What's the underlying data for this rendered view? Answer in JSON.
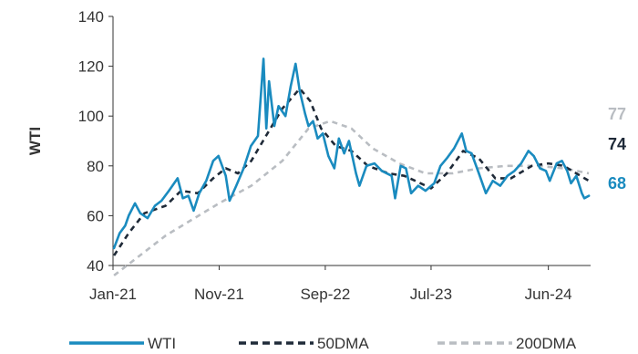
{
  "chart_data": {
    "type": "line",
    "ylabel": "WTI",
    "ylim": [
      40,
      140
    ],
    "yticks": [
      40,
      60,
      80,
      100,
      120,
      140
    ],
    "xlim": [
      "2021-01-01",
      "2024-09-30"
    ],
    "xticks": [
      {
        "date": "2021-01-01",
        "label": "Jan-21"
      },
      {
        "date": "2021-11-01",
        "label": "Nov-21"
      },
      {
        "date": "2022-09-01",
        "label": "Sep-22"
      },
      {
        "date": "2023-07-01",
        "label": "Jul-23"
      },
      {
        "date": "2024-06-01",
        "label": "Jun-24"
      }
    ],
    "grid": false,
    "legend_position": "bottom",
    "series": [
      {
        "name": "WTI",
        "color": "#1a8bbf",
        "style": "solid",
        "end_label": "68",
        "points": [
          [
            "2021-01-04",
            47
          ],
          [
            "2021-01-20",
            53
          ],
          [
            "2021-02-05",
            56
          ],
          [
            "2021-02-15",
            60
          ],
          [
            "2021-03-05",
            65
          ],
          [
            "2021-03-20",
            61
          ],
          [
            "2021-04-10",
            59
          ],
          [
            "2021-05-01",
            64
          ],
          [
            "2021-05-20",
            66
          ],
          [
            "2021-06-10",
            70
          ],
          [
            "2021-07-05",
            75
          ],
          [
            "2021-07-20",
            67
          ],
          [
            "2021-08-05",
            68
          ],
          [
            "2021-08-20",
            62
          ],
          [
            "2021-09-05",
            69
          ],
          [
            "2021-09-25",
            74
          ],
          [
            "2021-10-15",
            82
          ],
          [
            "2021-10-30",
            84
          ],
          [
            "2021-11-20",
            76
          ],
          [
            "2021-12-01",
            66
          ],
          [
            "2021-12-20",
            72
          ],
          [
            "2022-01-10",
            79
          ],
          [
            "2022-01-31",
            88
          ],
          [
            "2022-02-20",
            92
          ],
          [
            "2022-03-08",
            123
          ],
          [
            "2022-03-16",
            95
          ],
          [
            "2022-03-24",
            114
          ],
          [
            "2022-04-08",
            96
          ],
          [
            "2022-04-20",
            104
          ],
          [
            "2022-05-10",
            100
          ],
          [
            "2022-05-25",
            112
          ],
          [
            "2022-06-08",
            121
          ],
          [
            "2022-06-20",
            110
          ],
          [
            "2022-07-05",
            101
          ],
          [
            "2022-07-15",
            96
          ],
          [
            "2022-07-28",
            98
          ],
          [
            "2022-08-10",
            91
          ],
          [
            "2022-08-25",
            93
          ],
          [
            "2022-09-10",
            84
          ],
          [
            "2022-09-27",
            79
          ],
          [
            "2022-10-10",
            91
          ],
          [
            "2022-10-25",
            85
          ],
          [
            "2022-11-08",
            90
          ],
          [
            "2022-11-28",
            77
          ],
          [
            "2022-12-08",
            72
          ],
          [
            "2022-12-28",
            80
          ],
          [
            "2023-01-20",
            81
          ],
          [
            "2023-02-10",
            78
          ],
          [
            "2023-03-10",
            76
          ],
          [
            "2023-03-20",
            67
          ],
          [
            "2023-04-05",
            80
          ],
          [
            "2023-04-20",
            79
          ],
          [
            "2023-05-05",
            69
          ],
          [
            "2023-05-25",
            72
          ],
          [
            "2023-06-15",
            70
          ],
          [
            "2023-07-10",
            73
          ],
          [
            "2023-07-28",
            80
          ],
          [
            "2023-08-15",
            83
          ],
          [
            "2023-09-05",
            87
          ],
          [
            "2023-09-27",
            93
          ],
          [
            "2023-10-10",
            86
          ],
          [
            "2023-10-25",
            85
          ],
          [
            "2023-11-15",
            77
          ],
          [
            "2023-12-05",
            69
          ],
          [
            "2023-12-25",
            74
          ],
          [
            "2024-01-15",
            72
          ],
          [
            "2024-02-05",
            76
          ],
          [
            "2024-02-25",
            78
          ],
          [
            "2024-03-15",
            81
          ],
          [
            "2024-04-05",
            86
          ],
          [
            "2024-04-20",
            84
          ],
          [
            "2024-05-08",
            79
          ],
          [
            "2024-05-25",
            78
          ],
          [
            "2024-06-05",
            74
          ],
          [
            "2024-06-25",
            81
          ],
          [
            "2024-07-10",
            82
          ],
          [
            "2024-07-25",
            78
          ],
          [
            "2024-08-05",
            73
          ],
          [
            "2024-08-20",
            76
          ],
          [
            "2024-09-05",
            69
          ],
          [
            "2024-09-12",
            67
          ],
          [
            "2024-09-25",
            68
          ]
        ]
      },
      {
        "name": "50DMA",
        "color": "#1f2a38",
        "style": "dashed",
        "end_label": "74",
        "points": [
          [
            "2021-01-04",
            44
          ],
          [
            "2021-02-15",
            53
          ],
          [
            "2021-04-01",
            61
          ],
          [
            "2021-06-01",
            64
          ],
          [
            "2021-07-15",
            70
          ],
          [
            "2021-09-01",
            69
          ],
          [
            "2021-10-15",
            75
          ],
          [
            "2021-11-20",
            79
          ],
          [
            "2021-12-25",
            77
          ],
          [
            "2022-02-01",
            82
          ],
          [
            "2022-03-15",
            92
          ],
          [
            "2022-05-01",
            103
          ],
          [
            "2022-06-20",
            111
          ],
          [
            "2022-07-20",
            106
          ],
          [
            "2022-08-20",
            95
          ],
          [
            "2022-10-01",
            88
          ],
          [
            "2022-11-15",
            86
          ],
          [
            "2023-01-01",
            80
          ],
          [
            "2023-03-01",
            77
          ],
          [
            "2023-04-15",
            76
          ],
          [
            "2023-06-01",
            73
          ],
          [
            "2023-07-01",
            71
          ],
          [
            "2023-08-15",
            77
          ],
          [
            "2023-10-01",
            86
          ],
          [
            "2023-11-15",
            83
          ],
          [
            "2024-01-01",
            75
          ],
          [
            "2024-02-15",
            75
          ],
          [
            "2024-04-15",
            80
          ],
          [
            "2024-06-01",
            81
          ],
          [
            "2024-07-15",
            80
          ],
          [
            "2024-09-25",
            74
          ]
        ]
      },
      {
        "name": "200DMA",
        "color": "#b9bdc2",
        "style": "dashed",
        "end_label": "77",
        "points": [
          [
            "2021-01-04",
            36
          ],
          [
            "2021-06-01",
            52
          ],
          [
            "2021-11-01",
            65
          ],
          [
            "2022-02-01",
            72
          ],
          [
            "2022-05-01",
            82
          ],
          [
            "2022-07-15",
            95
          ],
          [
            "2022-09-15",
            98
          ],
          [
            "2022-11-15",
            95
          ],
          [
            "2023-01-15",
            87
          ],
          [
            "2023-04-01",
            81
          ],
          [
            "2023-06-15",
            77
          ],
          [
            "2023-09-01",
            77
          ],
          [
            "2023-11-15",
            79
          ],
          [
            "2024-02-01",
            80
          ],
          [
            "2024-05-01",
            80
          ],
          [
            "2024-07-15",
            79
          ],
          [
            "2024-09-25",
            77
          ]
        ]
      }
    ]
  }
}
